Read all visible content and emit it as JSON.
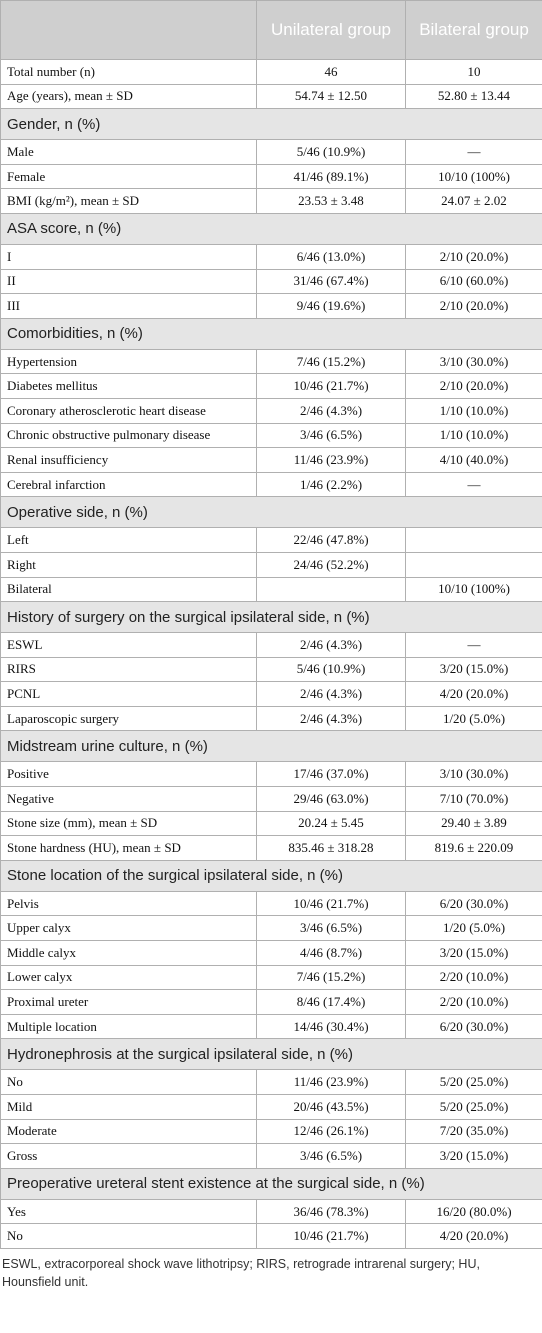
{
  "table": {
    "header": {
      "col1": "Unilateral group",
      "col2": "Bilateral group"
    },
    "top_rows": [
      [
        "Total number (n)",
        "46",
        "10"
      ],
      [
        "Age (years), mean ± SD",
        "54.74 ± 12.50",
        "52.80 ± 13.44"
      ]
    ],
    "sections": [
      {
        "title": "Gender, n (%)",
        "rows": [
          [
            "Male",
            "5/46 (10.9%)",
            "—"
          ],
          [
            "Female",
            "41/46 (89.1%)",
            "10/10 (100%)"
          ],
          [
            "BMI (kg/m²), mean ± SD",
            "23.53 ± 3.48",
            "24.07 ± 2.02"
          ]
        ]
      },
      {
        "title": "ASA score, n (%)",
        "rows": [
          [
            "I",
            "6/46 (13.0%)",
            "2/10 (20.0%)"
          ],
          [
            "II",
            "31/46 (67.4%)",
            "6/10 (60.0%)"
          ],
          [
            "III",
            "9/46 (19.6%)",
            "2/10 (20.0%)"
          ]
        ]
      },
      {
        "title": "Comorbidities, n (%)",
        "rows": [
          [
            "Hypertension",
            "7/46 (15.2%)",
            "3/10 (30.0%)"
          ],
          [
            "Diabetes mellitus",
            "10/46 (21.7%)",
            "2/10 (20.0%)"
          ],
          [
            "Coronary atherosclerotic heart disease",
            "2/46 (4.3%)",
            "1/10 (10.0%)"
          ],
          [
            "Chronic obstructive pulmonary disease",
            "3/46 (6.5%)",
            "1/10 (10.0%)"
          ],
          [
            "Renal insufficiency",
            "11/46 (23.9%)",
            "4/10 (40.0%)"
          ],
          [
            "Cerebral infarction",
            "1/46 (2.2%)",
            "—"
          ]
        ]
      },
      {
        "title": "Operative side, n (%)",
        "rows": [
          [
            "Left",
            "22/46 (47.8%)",
            null
          ],
          [
            "Right",
            "24/46 (52.2%)",
            null
          ],
          [
            "Bilateral",
            null,
            "10/10 (100%)"
          ]
        ]
      },
      {
        "title": "History of surgery on the surgical ipsilateral side, n (%)",
        "rows": [
          [
            "ESWL",
            "2/46 (4.3%)",
            "—"
          ],
          [
            "RIRS",
            "5/46 (10.9%)",
            "3/20 (15.0%)"
          ],
          [
            "PCNL",
            "2/46 (4.3%)",
            "4/20 (20.0%)"
          ],
          [
            "Laparoscopic surgery",
            "2/46 (4.3%)",
            "1/20 (5.0%)"
          ]
        ]
      },
      {
        "title": "Midstream urine culture, n (%)",
        "rows": [
          [
            "Positive",
            "17/46 (37.0%)",
            "3/10 (30.0%)"
          ],
          [
            "Negative",
            "29/46 (63.0%)",
            "7/10 (70.0%)"
          ],
          [
            "Stone size (mm), mean ± SD",
            "20.24 ± 5.45",
            "29.40 ± 3.89"
          ],
          [
            "Stone hardness (HU), mean ± SD",
            "835.46 ± 318.28",
            "819.6 ± 220.09"
          ]
        ]
      },
      {
        "title": "Stone location of the surgical ipsilateral side, n (%)",
        "rows": [
          [
            "Pelvis",
            "10/46 (21.7%)",
            "6/20 (30.0%)"
          ],
          [
            "Upper calyx",
            "3/46 (6.5%)",
            "1/20 (5.0%)"
          ],
          [
            "Middle calyx",
            "4/46 (8.7%)",
            "3/20 (15.0%)"
          ],
          [
            "Lower calyx",
            "7/46 (15.2%)",
            "2/20 (10.0%)"
          ],
          [
            "Proximal ureter",
            "8/46 (17.4%)",
            "2/20 (10.0%)"
          ],
          [
            "Multiple location",
            "14/46 (30.4%)",
            "6/20 (30.0%)"
          ]
        ]
      },
      {
        "title": "Hydronephrosis at the surgical ipsilateral side, n (%)",
        "rows": [
          [
            "No",
            "11/46 (23.9%)",
            "5/20 (25.0%)"
          ],
          [
            "Mild",
            "20/46 (43.5%)",
            "5/20 (25.0%)"
          ],
          [
            "Moderate",
            "12/46 (26.1%)",
            "7/20 (35.0%)"
          ],
          [
            "Gross",
            "3/46 (6.5%)",
            "3/20 (15.0%)"
          ]
        ]
      },
      {
        "title": "Preoperative ureteral stent existence at the surgical side, n (%)",
        "rows": [
          [
            "Yes",
            "36/46 (78.3%)",
            "16/20 (80.0%)"
          ],
          [
            "No",
            "10/46 (21.7%)",
            "4/20 (20.0%)"
          ]
        ]
      }
    ]
  },
  "footnote": "ESWL, extracorporeal shock wave lithotripsy; RIRS, retrograde intrarenal surgery; HU, Hounsfield unit."
}
